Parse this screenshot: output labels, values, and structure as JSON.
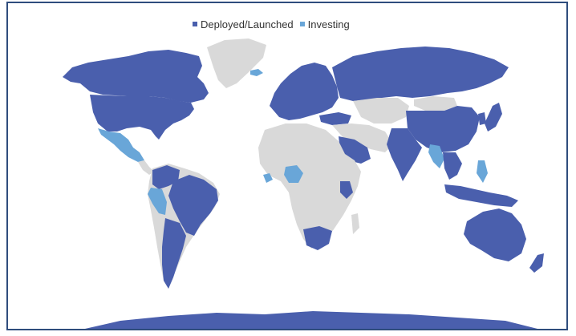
{
  "legend": {
    "items": [
      {
        "label": "Deployed/Launched",
        "color": "#4a5fad"
      },
      {
        "label": "Investing",
        "color": "#69a6d8"
      }
    ]
  },
  "map": {
    "land_other_color": "#d9d9d9",
    "deployed": [
      "USA",
      "Canada",
      "Alaska",
      "Russia",
      "China",
      "India",
      "Australia",
      "Brazil",
      "Argentina",
      "Chile",
      "Colombia",
      "Venezuela",
      "Europe",
      "Turkey",
      "Saudi Arabia",
      "South Africa",
      "Kenya",
      "Indonesia",
      "Japan",
      "South Korea",
      "Greenland-none",
      "Antarctica",
      "New Zealand"
    ],
    "investing": [
      "Mexico",
      "Peru",
      "Nigeria",
      "Philippines",
      "Myanmar",
      "Iceland",
      "Ivory Coast"
    ]
  }
}
